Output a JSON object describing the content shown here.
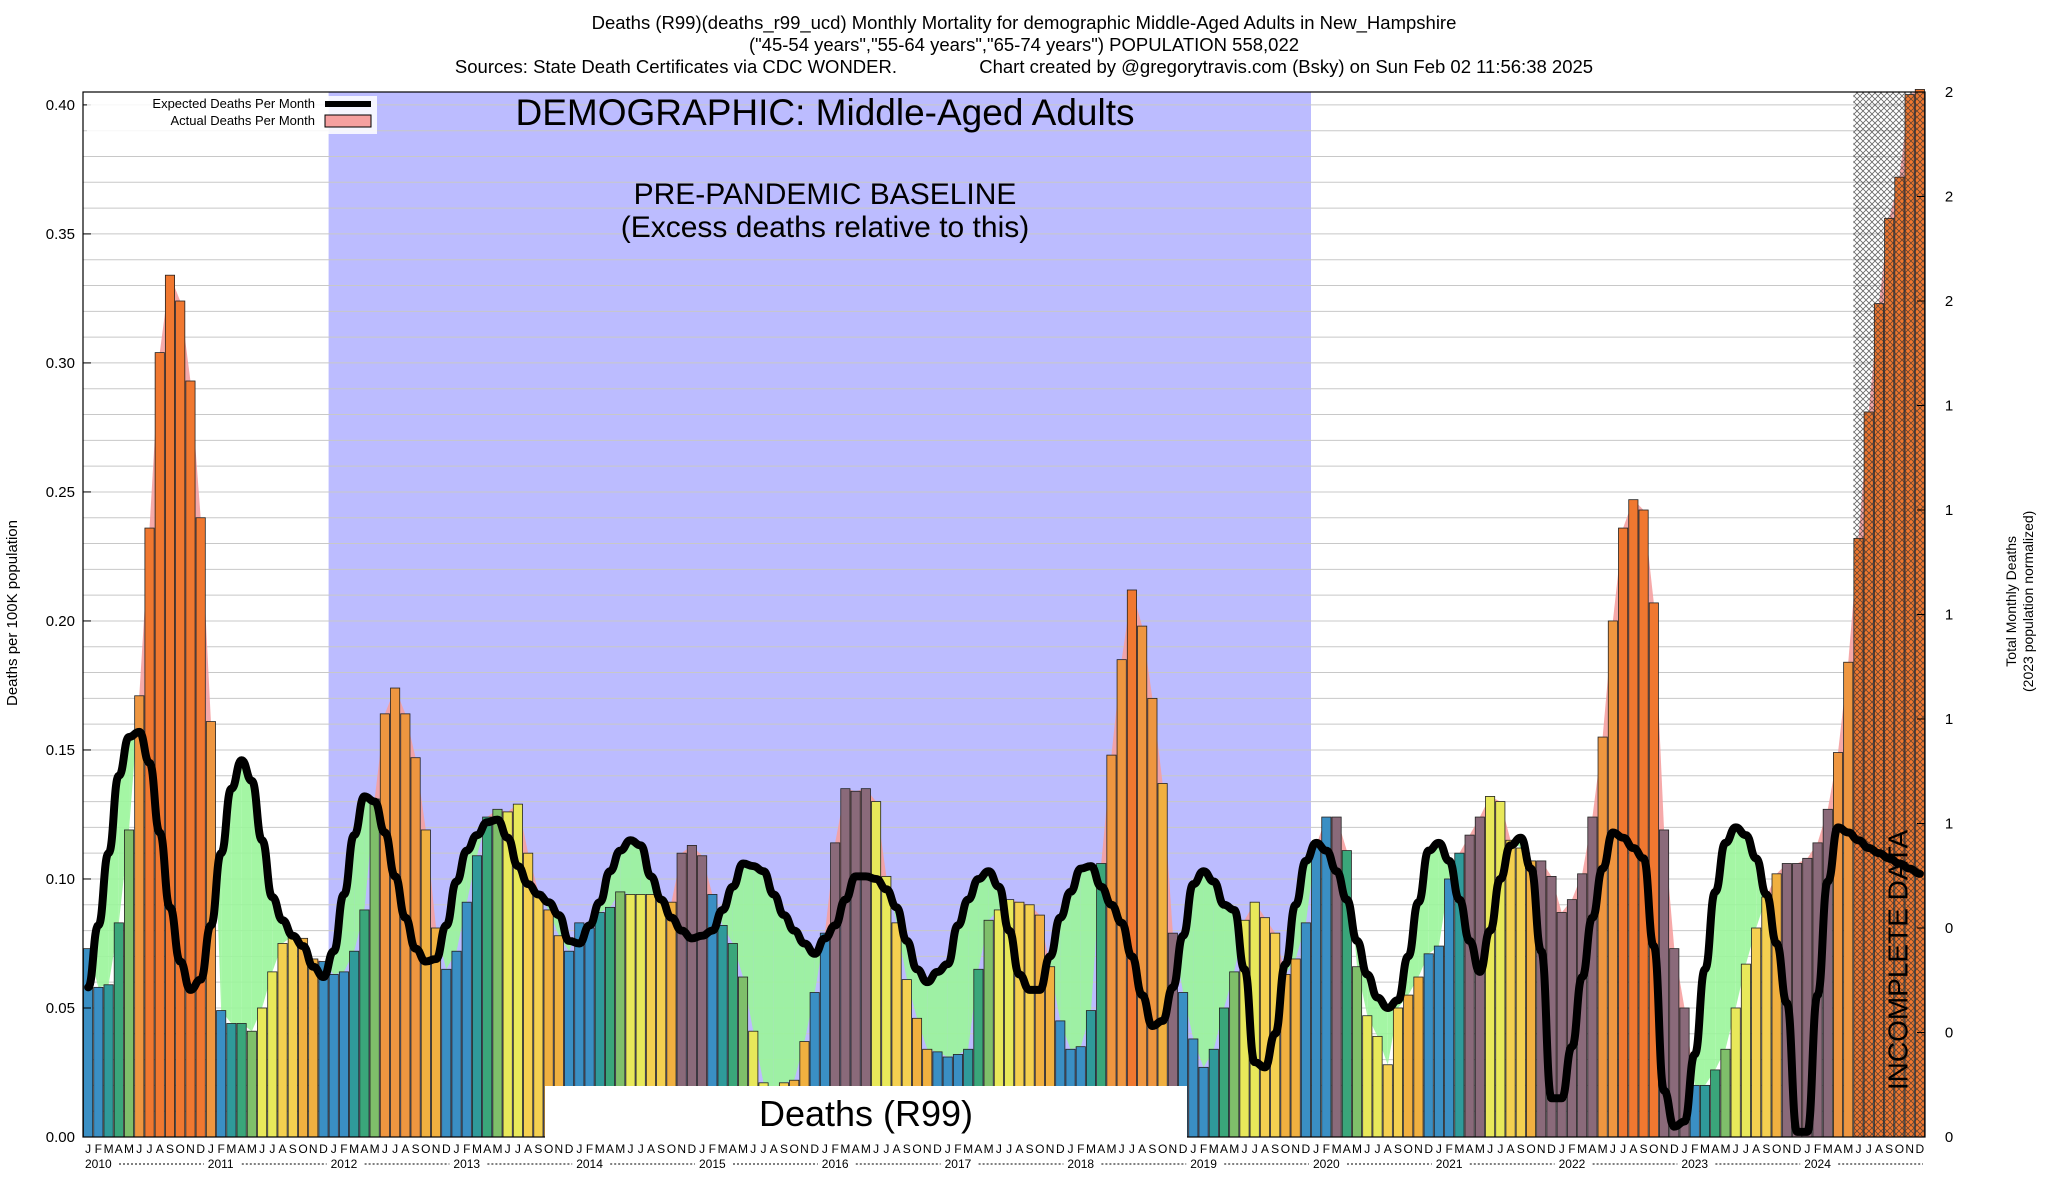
{
  "header": {
    "title_line1": "Deaths (R99)(deaths_r99_ucd) Monthly Mortality for demographic Middle-Aged Adults in New_Hampshire",
    "title_line2": "(\"45-54 years\",\"55-64 years\",\"65-74 years\") POPULATION 558,022",
    "title_line3": "Sources: State Death Certificates via CDC WONDER.                Chart created by @gregorytravis.com (Bsky) on Sun Feb 02 11:56:38 2025"
  },
  "annotations": {
    "demographic": "DEMOGRAPHIC: Middle-Aged Adults",
    "baseline_line1": "PRE-PANDEMIC BASELINE",
    "baseline_line2": "(Excess deaths relative to this)",
    "cause": "Deaths (R99)",
    "incomplete": "INCOMPLETE DATA"
  },
  "colors": {
    "baseline_band": "#bcbcff",
    "excess_fill": "#f5a0a0",
    "deficit_fill": "#9af59a",
    "expected_line": "#000000",
    "palette": [
      "#3a8fc4",
      "#2f9a9a",
      "#3aa67a",
      "#7fbf6a",
      "#e8e85a",
      "#f4d050",
      "#f0b040",
      "#ee9640",
      "#f07830",
      "#8a6a7a"
    ]
  },
  "chart_data": {
    "type": "bar",
    "ylabel": "Deaths per 100K population",
    "y2label_line1": "Total Monthly Deaths",
    "y2label_line2": "(2023 population normalized)",
    "ylim": [
      0,
      0.405
    ],
    "yticks": [
      "0.00",
      "0.05",
      "0.10",
      "0.15",
      "0.20",
      "0.25",
      "0.30",
      "0.35",
      "0.40"
    ],
    "y2ticks": [
      "0",
      "0",
      "0",
      "1",
      "1",
      "1",
      "1",
      "1",
      "2",
      "2",
      "2"
    ],
    "x_start": "2010-01",
    "month_letters": [
      "J",
      "F",
      "M",
      "A",
      "M",
      "J",
      "J",
      "A",
      "S",
      "O",
      "N",
      "D"
    ],
    "year_labels": [
      "2010",
      "2011",
      "2012",
      "2013",
      "2014",
      "2015",
      "2016",
      "2017",
      "2018",
      "2019",
      "2020",
      "2021",
      "2022",
      "2023",
      "2024"
    ],
    "baseline_period": [
      "2012-01",
      "2019-12"
    ],
    "incomplete_from": "2024-06",
    "legend": {
      "position": "top-left",
      "expected_label": "Expected Deaths Per Month",
      "actual_label": "Actual Deaths Per Month"
    },
    "series": [
      {
        "name": "Actual Deaths Per Month",
        "values": [
          0.073,
          0.058,
          0.059,
          0.083,
          0.119,
          0.171,
          0.236,
          0.304,
          0.334,
          0.324,
          0.293,
          0.24,
          0.161,
          0.049,
          0.044,
          0.044,
          0.041,
          0.05,
          0.064,
          0.075,
          0.078,
          0.077,
          0.069,
          0.068,
          0.063,
          0.064,
          0.072,
          0.088,
          0.131,
          0.164,
          0.174,
          0.164,
          0.147,
          0.119,
          0.081,
          0.065,
          0.072,
          0.091,
          0.109,
          0.124,
          0.127,
          0.126,
          0.129,
          0.11,
          0.095,
          0.088,
          0.078,
          0.072,
          0.083,
          0.081,
          0.087,
          0.089,
          0.095,
          0.094,
          0.094,
          0.094,
          0.092,
          0.091,
          0.11,
          0.113,
          0.109,
          0.094,
          0.082,
          0.075,
          0.062,
          0.041,
          0.021,
          0.015,
          0.021,
          0.022,
          0.037,
          0.056,
          0.079,
          0.114,
          0.135,
          0.134,
          0.135,
          0.13,
          0.101,
          0.083,
          0.061,
          0.046,
          0.034,
          0.033,
          0.031,
          0.032,
          0.034,
          0.065,
          0.084,
          0.088,
          0.092,
          0.091,
          0.09,
          0.086,
          0.066,
          0.045,
          0.034,
          0.035,
          0.049,
          0.106,
          0.148,
          0.185,
          0.212,
          0.198,
          0.17,
          0.137,
          0.079,
          0.056,
          0.038,
          0.027,
          0.034,
          0.05,
          0.064,
          0.084,
          0.091,
          0.085,
          0.079,
          0.063,
          0.069,
          0.083,
          0.113,
          0.124,
          0.124,
          0.111,
          0.066,
          0.047,
          0.039,
          0.028,
          0.05,
          0.055,
          0.062,
          0.071,
          0.074,
          0.1,
          0.11,
          0.117,
          0.124,
          0.132,
          0.13,
          0.115,
          0.112,
          0.107,
          0.107,
          0.101,
          0.087,
          0.092,
          0.102,
          0.124,
          0.155,
          0.2,
          0.236,
          0.247,
          0.243,
          0.207,
          0.119,
          0.073,
          0.05,
          0.02,
          0.02,
          0.026,
          0.034,
          0.05,
          0.067,
          0.081,
          0.093,
          0.102,
          0.106,
          0.106,
          0.108,
          0.114,
          0.127,
          0.149,
          0.184,
          0.232,
          0.281,
          0.323,
          0.356,
          0.372,
          0.404,
          0.406
        ]
      },
      {
        "name": "Expected Deaths Per Month",
        "values": [
          0.058,
          0.082,
          0.11,
          0.14,
          0.155,
          0.157,
          0.145,
          0.118,
          0.089,
          0.068,
          0.057,
          0.061,
          0.082,
          0.11,
          0.135,
          0.146,
          0.138,
          0.115,
          0.093,
          0.084,
          0.078,
          0.074,
          0.066,
          0.062,
          0.072,
          0.094,
          0.117,
          0.132,
          0.13,
          0.118,
          0.101,
          0.085,
          0.073,
          0.068,
          0.069,
          0.082,
          0.099,
          0.111,
          0.117,
          0.122,
          0.123,
          0.116,
          0.105,
          0.098,
          0.094,
          0.091,
          0.086,
          0.076,
          0.075,
          0.082,
          0.091,
          0.103,
          0.111,
          0.115,
          0.113,
          0.101,
          0.092,
          0.085,
          0.08,
          0.077,
          0.078,
          0.08,
          0.088,
          0.097,
          0.106,
          0.105,
          0.103,
          0.094,
          0.086,
          0.08,
          0.075,
          0.071,
          0.077,
          0.082,
          0.092,
          0.101,
          0.101,
          0.1,
          0.096,
          0.089,
          0.076,
          0.065,
          0.06,
          0.064,
          0.067,
          0.082,
          0.092,
          0.1,
          0.103,
          0.097,
          0.08,
          0.063,
          0.057,
          0.057,
          0.07,
          0.085,
          0.095,
          0.104,
          0.105,
          0.097,
          0.09,
          0.083,
          0.07,
          0.055,
          0.043,
          0.045,
          0.058,
          0.078,
          0.098,
          0.103,
          0.099,
          0.09,
          0.088,
          0.065,
          0.029,
          0.027,
          0.04,
          0.067,
          0.09,
          0.107,
          0.114,
          0.111,
          0.103,
          0.092,
          0.076,
          0.063,
          0.054,
          0.05,
          0.053,
          0.07,
          0.091,
          0.111,
          0.114,
          0.107,
          0.092,
          0.076,
          0.064,
          0.08,
          0.1,
          0.113,
          0.116,
          0.104,
          0.072,
          0.015,
          0.015,
          0.035,
          0.062,
          0.085,
          0.104,
          0.118,
          0.116,
          0.112,
          0.108,
          0.074,
          0.018,
          0.004,
          0.006,
          0.032,
          0.065,
          0.095,
          0.114,
          0.12,
          0.117,
          0.108,
          0.094,
          0.075,
          0.052,
          0.002,
          0.002,
          0.055,
          0.099,
          0.12,
          0.118,
          0.115,
          0.112,
          0.11,
          0.108,
          0.106,
          0.104,
          0.102
        ]
      }
    ]
  }
}
